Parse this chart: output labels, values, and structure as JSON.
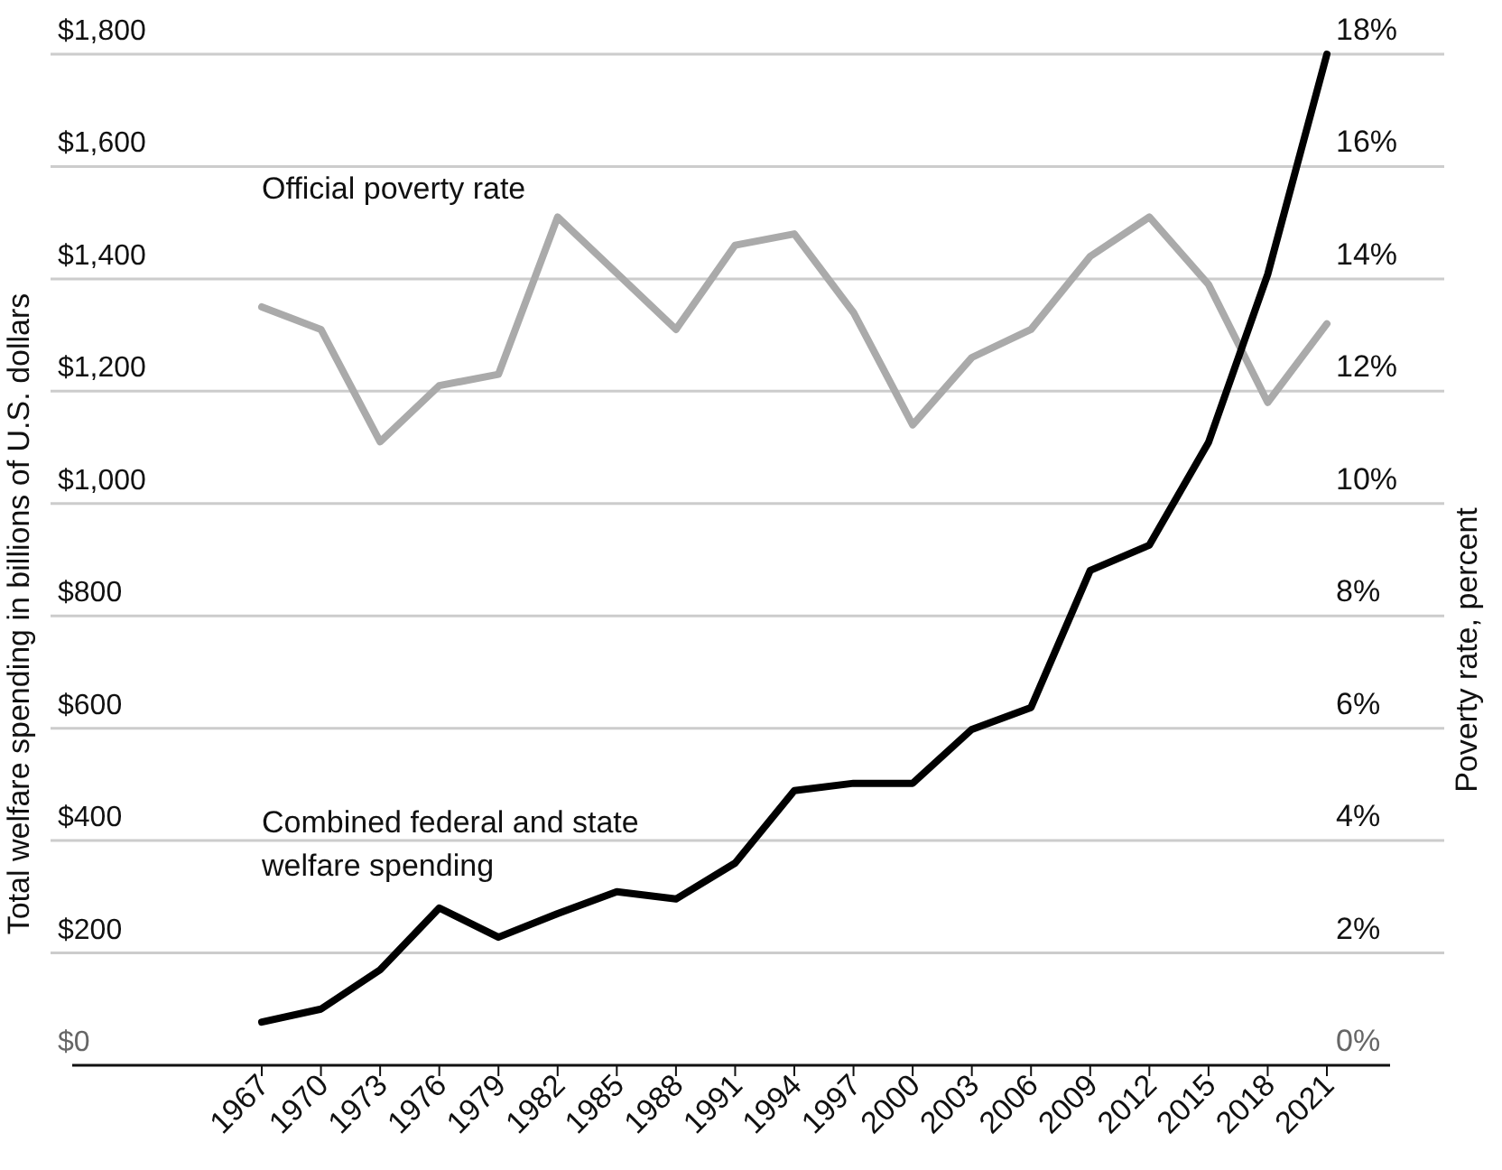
{
  "chart_data": {
    "type": "line",
    "ylabel": "Total welfare spending in billions of U.S. dollars",
    "y2label": "Poverty rate, percent",
    "categories": [
      "1967",
      "1970",
      "1973",
      "1976",
      "1979",
      "1982",
      "1985",
      "1988",
      "1991",
      "1994",
      "1997",
      "2000",
      "2003",
      "2006",
      "2009",
      "2012",
      "2015",
      "2018",
      "2021"
    ],
    "series": [
      {
        "name": "Official poverty rate",
        "color": "#aaaaaa",
        "axis": "y2",
        "values": [
          13.5,
          13.1,
          11.1,
          12.1,
          12.3,
          15.1,
          14.1,
          13.1,
          14.6,
          14.8,
          13.4,
          11.4,
          12.6,
          13.1,
          14.4,
          15.1,
          13.9,
          11.8,
          13.2
        ]
      },
      {
        "name": "Combined federal and state welfare spending",
        "color": "#000000",
        "values": [
          77,
          100,
          170,
          280,
          228,
          270,
          309,
          296,
          360,
          489,
          502,
          502,
          598,
          637,
          881,
          926,
          1109,
          1408,
          1800
        ]
      }
    ],
    "ylim": [
      0,
      1800
    ],
    "yticks": [
      {
        "value": 0,
        "label": "$0"
      },
      {
        "value": 200,
        "label": "$200"
      },
      {
        "value": 400,
        "label": "$400"
      },
      {
        "value": 600,
        "label": "$600"
      },
      {
        "value": 800,
        "label": "$800"
      },
      {
        "value": 1000,
        "label": "$1,000"
      },
      {
        "value": 1200,
        "label": "$1,200"
      },
      {
        "value": 1400,
        "label": "$1,400"
      },
      {
        "value": 1600,
        "label": "$1,600"
      },
      {
        "value": 1800,
        "label": "$1,800"
      }
    ],
    "y2lim": [
      0,
      18
    ],
    "y2ticks": [
      {
        "value": 0,
        "label": "0%"
      },
      {
        "value": 2,
        "label": "2%"
      },
      {
        "value": 4,
        "label": "4%"
      },
      {
        "value": 6,
        "label": "6%"
      },
      {
        "value": 8,
        "label": "8%"
      },
      {
        "value": 10,
        "label": "10%"
      },
      {
        "value": 12,
        "label": "12%"
      },
      {
        "value": 14,
        "label": "14%"
      },
      {
        "value": 16,
        "label": "16%"
      },
      {
        "value": 18,
        "label": "18%"
      }
    ],
    "grid": "y",
    "marker": "none",
    "line_style": "solid"
  }
}
